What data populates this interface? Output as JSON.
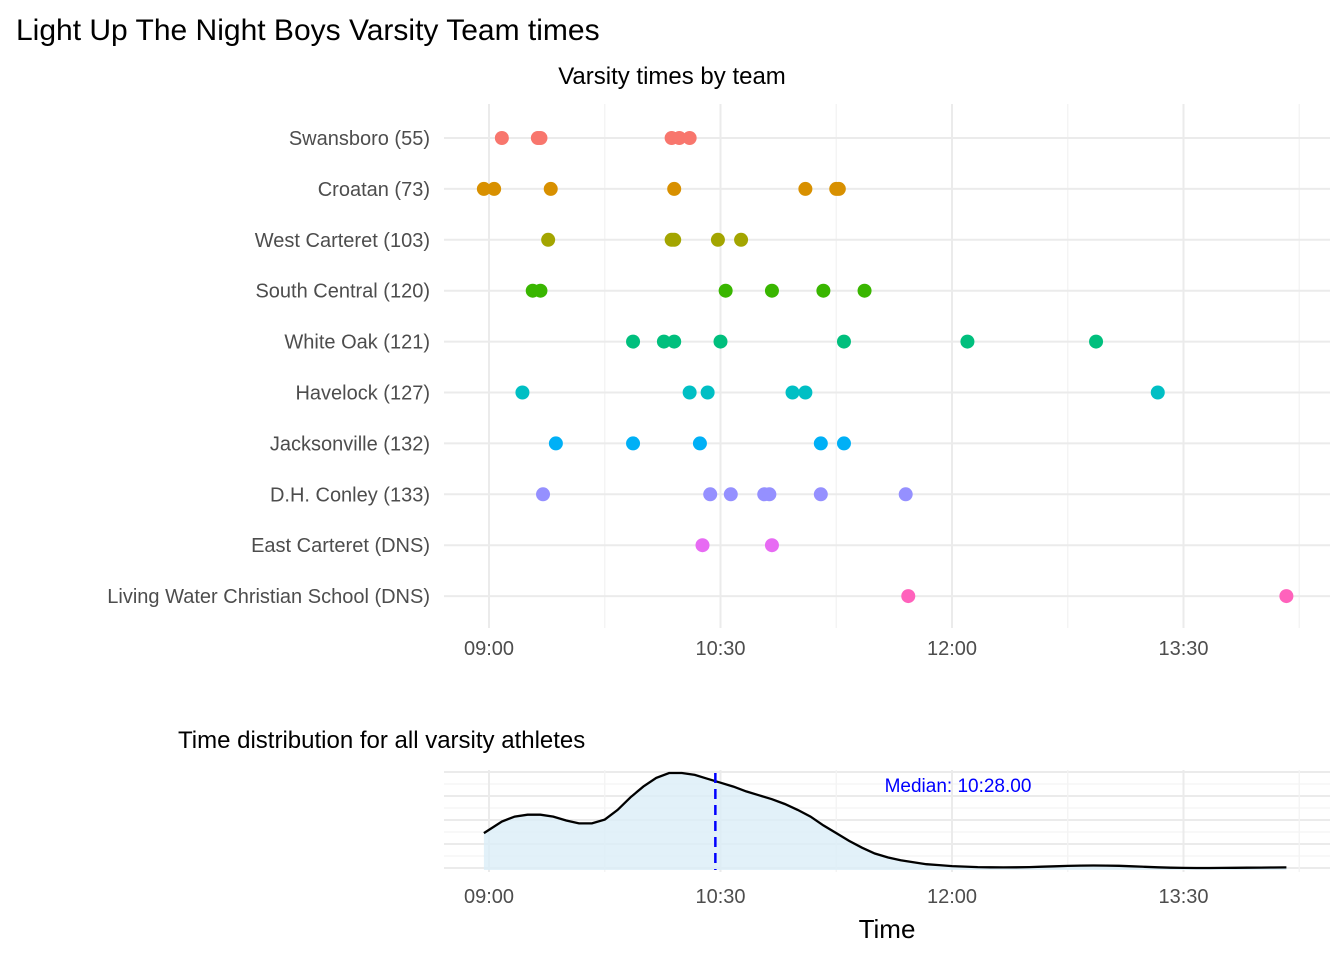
{
  "chart_data": {
    "title": "Light Up The Night Boys Varsity Team times",
    "panels": [
      {
        "type": "scatter",
        "subtitle": "Varsity times by team",
        "x_range_seconds": [
          531,
          835
        ],
        "x_ticks": [
          {
            "value": 540,
            "label": "09:00"
          },
          {
            "value": 630,
            "label": "10:30"
          },
          {
            "value": 720,
            "label": "12:00"
          },
          {
            "value": 810,
            "label": "13:30"
          }
        ],
        "categories": [
          "Swansboro (55)",
          "Croatan (73)",
          "West Carteret (103)",
          "South Central (120)",
          "White Oak (121)",
          "Havelock (127)",
          "Jacksonville (132)",
          "D.H. Conley (133)",
          "East Carteret (DNS)",
          "Living Water Christian School (DNS)"
        ],
        "colors": [
          "#F8766D",
          "#D89000",
          "#A3A500",
          "#39B600",
          "#00BF7D",
          "#00BFC4",
          "#00B0F6",
          "#9590FF",
          "#E76BF3",
          "#FF62BC"
        ],
        "series": [
          {
            "name": "Swansboro (55)",
            "x": [
              545,
              559,
              560,
              611,
              614,
              618
            ]
          },
          {
            "name": "Croatan (73)",
            "x": [
              538,
              542,
              564,
              612,
              663,
              675,
              676
            ]
          },
          {
            "name": "West Carteret (103)",
            "x": [
              563,
              611,
              612,
              629,
              638
            ]
          },
          {
            "name": "South Central (120)",
            "x": [
              557,
              560,
              632,
              650,
              670,
              686
            ]
          },
          {
            "name": "White Oak (121)",
            "x": [
              596,
              608,
              612,
              630,
              678,
              726,
              776
            ]
          },
          {
            "name": "Havelock (127)",
            "x": [
              553,
              618,
              625,
              658,
              663,
              800
            ]
          },
          {
            "name": "Jacksonville (132)",
            "x": [
              566,
              596,
              622,
              669,
              678
            ]
          },
          {
            "name": "D.H. Conley (133)",
            "x": [
              561,
              626,
              634,
              647,
              649,
              669,
              702
            ]
          },
          {
            "name": "East Carteret (DNS)",
            "x": [
              623,
              650
            ]
          },
          {
            "name": "Living Water Christian School (DNS)",
            "x": [
              703,
              850
            ]
          }
        ]
      },
      {
        "type": "area",
        "subtitle": "Time distribution for all varsity athletes",
        "xlabel": "Time",
        "x_range_seconds": [
          531,
          835
        ],
        "x_ticks": [
          {
            "value": 540,
            "label": "09:00"
          },
          {
            "value": 630,
            "label": "10:30"
          },
          {
            "value": 720,
            "label": "12:00"
          },
          {
            "value": 810,
            "label": "13:30"
          }
        ],
        "fill_color": "#dbeef7",
        "line_color": "#000000",
        "density": {
          "x": [
            538,
            545,
            550,
            555,
            560,
            565,
            570,
            575,
            580,
            585,
            590,
            595,
            600,
            605,
            610,
            615,
            620,
            625,
            630,
            635,
            640,
            645,
            650,
            655,
            660,
            665,
            670,
            675,
            680,
            685,
            690,
            695,
            700,
            705,
            710,
            715,
            720,
            725,
            730,
            735,
            740,
            745,
            750,
            755,
            760,
            765,
            770,
            775,
            780,
            785,
            790,
            795,
            800,
            805,
            810,
            815,
            820,
            825,
            830,
            835,
            840,
            845,
            850
          ],
          "y": [
            0.38,
            0.5,
            0.55,
            0.57,
            0.57,
            0.55,
            0.51,
            0.48,
            0.48,
            0.52,
            0.62,
            0.75,
            0.86,
            0.95,
            1.0,
            1.0,
            0.98,
            0.94,
            0.9,
            0.86,
            0.81,
            0.77,
            0.73,
            0.68,
            0.62,
            0.55,
            0.46,
            0.38,
            0.3,
            0.23,
            0.17,
            0.13,
            0.1,
            0.08,
            0.06,
            0.05,
            0.04,
            0.035,
            0.03,
            0.028,
            0.027,
            0.028,
            0.03,
            0.034,
            0.038,
            0.042,
            0.045,
            0.046,
            0.045,
            0.043,
            0.038,
            0.033,
            0.028,
            0.024,
            0.022,
            0.021,
            0.021,
            0.022,
            0.023,
            0.024,
            0.025,
            0.026,
            0.027
          ]
        },
        "median_x": 628,
        "median_label": "Median: 10:28.00",
        "median_color": "#0000ff"
      }
    ]
  }
}
